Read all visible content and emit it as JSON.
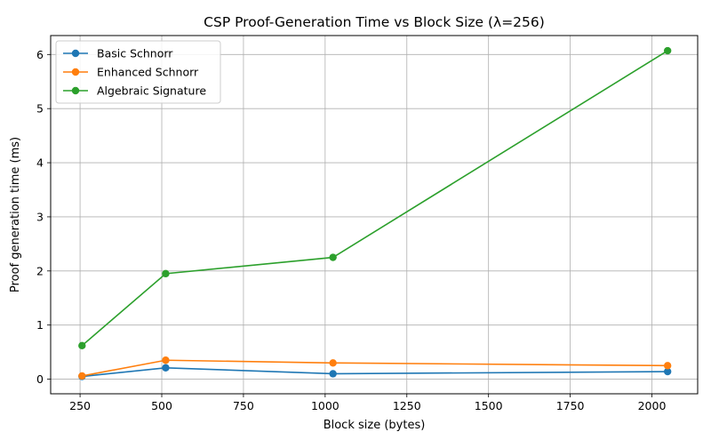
{
  "chart_data": {
    "type": "line",
    "title": "CSP Proof-Generation Time vs Block Size (λ=256)",
    "xlabel": "Block size (bytes)",
    "ylabel": "Proof generation time (ms)",
    "xlim": [
      160,
      2140
    ],
    "ylim": [
      -0.27,
      6.35
    ],
    "x": [
      256,
      512,
      1024,
      2048
    ],
    "xticks": [
      250,
      500,
      750,
      1000,
      1250,
      1500,
      1750,
      2000
    ],
    "yticks": [
      0,
      1,
      2,
      3,
      4,
      5,
      6
    ],
    "grid": true,
    "legend_position": "top-left",
    "series": [
      {
        "name": "Basic Schnorr",
        "color": "#1f77b4",
        "values": [
          0.05,
          0.21,
          0.1,
          0.14
        ]
      },
      {
        "name": "Enhanced Schnorr",
        "color": "#ff7f0e",
        "values": [
          0.06,
          0.35,
          0.3,
          0.25
        ]
      },
      {
        "name": "Algebraic Signature",
        "color": "#2ca02c",
        "values": [
          0.62,
          1.95,
          2.25,
          6.07
        ]
      }
    ]
  }
}
